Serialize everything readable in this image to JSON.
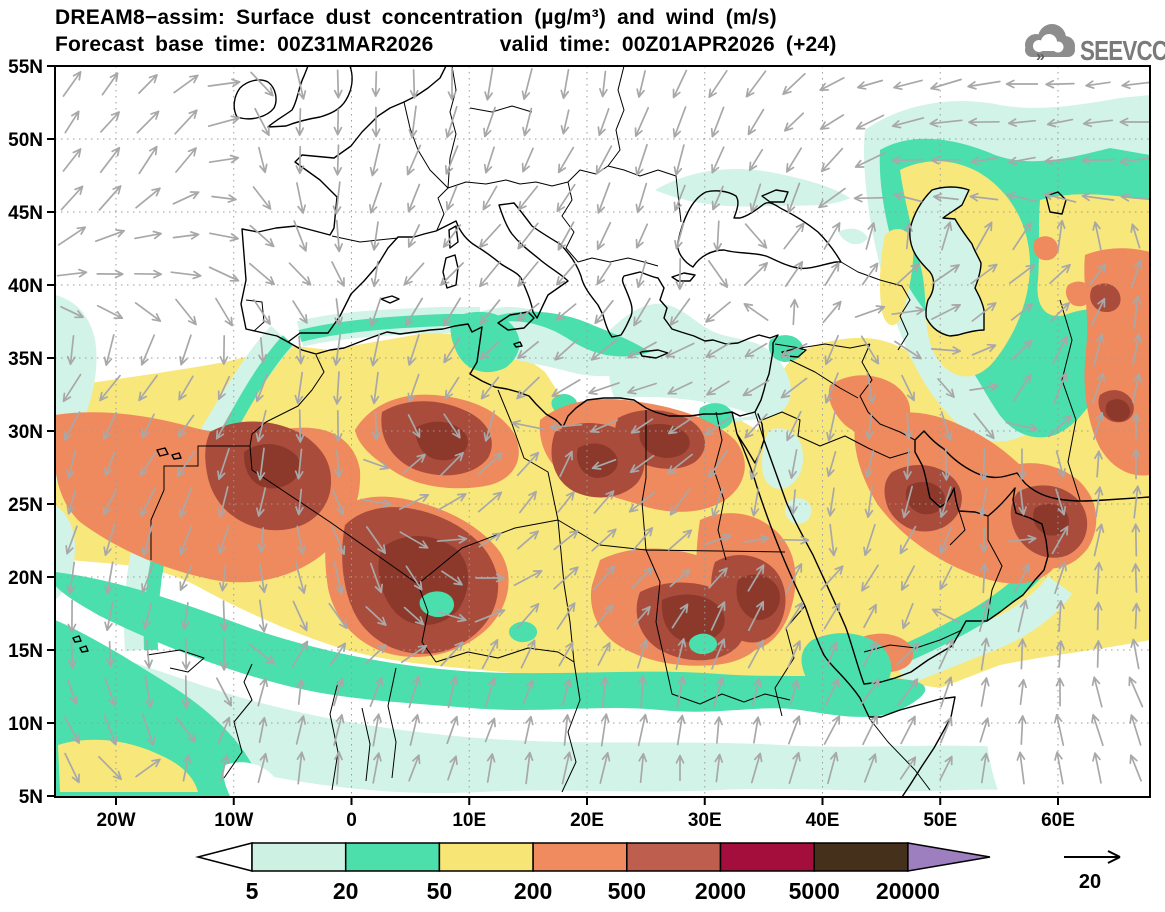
{
  "title": {
    "line1": "DREAM8−assim: Surface dust concentration (µg/m³) and wind (m/s)",
    "line2": "Forecast base time: 00Z31MAR2026      valid time: 00Z01APR2026 (+24)"
  },
  "branding": {
    "logo_text": "SEEVCCC"
  },
  "axes": {
    "lat_labels": [
      "55N",
      "50N",
      "45N",
      "40N",
      "35N",
      "30N",
      "25N",
      "20N",
      "15N",
      "10N",
      "5N"
    ],
    "lon_labels": [
      "20W",
      "10W",
      "0",
      "10E",
      "20E",
      "30E",
      "40E",
      "50E",
      "60E"
    ]
  },
  "legend": {
    "values": [
      "5",
      "20",
      "50",
      "200",
      "500",
      "2000",
      "5000",
      "20000"
    ],
    "segment_colors": [
      "#ffffff",
      "#cdf2e4",
      "#4cdfab",
      "#f7e576",
      "#f08a5f",
      "#bd5e4e",
      "#a30e3d",
      "#45301c",
      "#9d7fc0"
    ]
  },
  "wind": {
    "reference_value": "20",
    "arrow_color": "#a8a8a8",
    "grid_cols": [
      55,
      177,
      299,
      421,
      543,
      665,
      787,
      909,
      1031,
      1150
    ],
    "grid_rows": [
      66,
      170,
      274,
      378,
      482,
      586,
      690,
      796
    ],
    "angles": [
      [
        50,
        45,
        285,
        270,
        265,
        255,
        215,
        195,
        185,
        180
      ],
      [
        60,
        50,
        265,
        250,
        240,
        250,
        245,
        185,
        185,
        190
      ],
      [
        15,
        350,
        315,
        230,
        225,
        260,
        60,
        45,
        30,
        80
      ],
      [
        240,
        230,
        265,
        250,
        215,
        195,
        215,
        300,
        60,
        85
      ],
      [
        255,
        240,
        265,
        45,
        50,
        225,
        265,
        255,
        270,
        90
      ],
      [
        260,
        250,
        285,
        295,
        40,
        45,
        60,
        240,
        70,
        90
      ],
      [
        290,
        275,
        80,
        70,
        75,
        85,
        70,
        55,
        90,
        110
      ],
      [
        300,
        80,
        85,
        75,
        80,
        85,
        80,
        60,
        95,
        120
      ]
    ]
  },
  "colors": {
    "c5": "#d2f3e7",
    "c20": "#4adfac",
    "c50": "#f8e77b",
    "c200": "#ef8a5e",
    "c500": "#a94c3c",
    "c2000": "#8c392c",
    "white": "#ffffff",
    "coast": "#000000",
    "grid_dots": "#9b9b9b",
    "frame": "#000000",
    "logo_gray": "#8d8d8d",
    "logo_text_gray": "#7a7a7a",
    "logo_dark": "#5f5f5f"
  }
}
